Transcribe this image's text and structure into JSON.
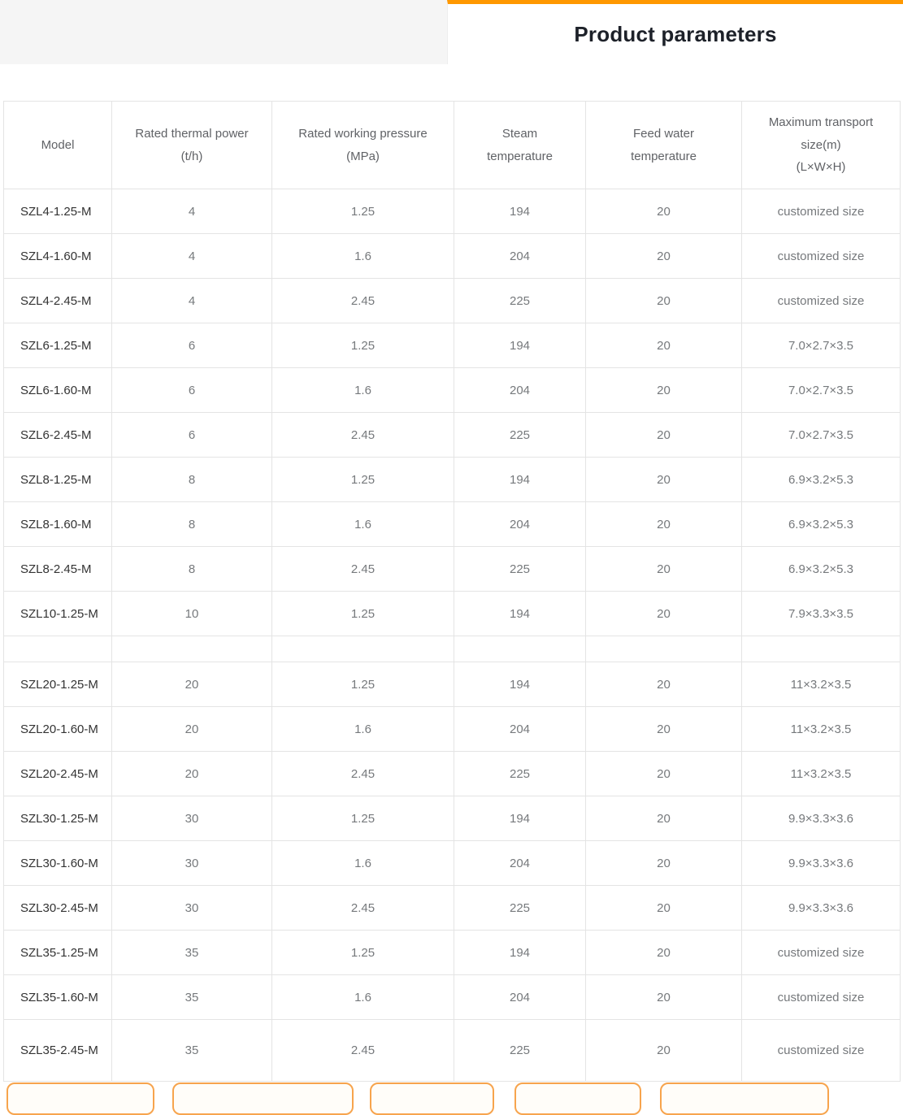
{
  "header": {
    "title": "Product parameters",
    "accent_color": "#ff9800",
    "title_color": "#1d2129",
    "strip_background": "#f5f5f5"
  },
  "table": {
    "columns": [
      "Model",
      "Rated thermal power\n(t/h)",
      "Rated working pressure\n(MPa)",
      "Steam\ntemperature",
      "Feed water\ntemperature",
      "Maximum transport\nsize(m)\n(L×W×H)"
    ],
    "rows": [
      [
        "SZL4-1.25-M",
        "4",
        "1.25",
        "194",
        "20",
        "customized size"
      ],
      [
        "SZL4-1.60-M",
        "4",
        "1.6",
        "204",
        "20",
        "customized size"
      ],
      [
        "SZL4-2.45-M",
        "4",
        "2.45",
        "225",
        "20",
        "customized size"
      ],
      [
        "SZL6-1.25-M",
        "6",
        "1.25",
        "194",
        "20",
        "7.0×2.7×3.5"
      ],
      [
        "SZL6-1.60-M",
        "6",
        "1.6",
        "204",
        "20",
        "7.0×2.7×3.5"
      ],
      [
        "SZL6-2.45-M",
        "6",
        "2.45",
        "225",
        "20",
        "7.0×2.7×3.5"
      ],
      [
        "SZL8-1.25-M",
        "8",
        "1.25",
        "194",
        "20",
        "6.9×3.2×5.3"
      ],
      [
        "SZL8-1.60-M",
        "8",
        "1.6",
        "204",
        "20",
        "6.9×3.2×5.3"
      ],
      [
        "SZL8-2.45-M",
        "8",
        "2.45",
        "225",
        "20",
        "6.9×3.2×5.3"
      ],
      [
        "SZL10-1.25-M",
        "10",
        "1.25",
        "194",
        "20",
        "7.9×3.3×3.5"
      ],
      [
        "",
        "",
        "",
        "",
        "",
        ""
      ],
      [
        "SZL20-1.25-M",
        "20",
        "1.25",
        "194",
        "20",
        "11×3.2×3.5"
      ],
      [
        "SZL20-1.60-M",
        "20",
        "1.6",
        "204",
        "20",
        "11×3.2×3.5"
      ],
      [
        "SZL20-2.45-M",
        "20",
        "2.45",
        "225",
        "20",
        "11×3.2×3.5"
      ],
      [
        "SZL30-1.25-M",
        "30",
        "1.25",
        "194",
        "20",
        "9.9×3.3×3.6"
      ],
      [
        "SZL30-1.60-M",
        "30",
        "1.6",
        "204",
        "20",
        "9.9×3.3×3.6"
      ],
      [
        "SZL30-2.45-M",
        "30",
        "2.45",
        "225",
        "20",
        "9.9×3.3×3.6"
      ],
      [
        "SZL35-1.25-M",
        "35",
        "1.25",
        "194",
        "20",
        "customized size"
      ],
      [
        "SZL35-1.60-M",
        "35",
        "1.6",
        "204",
        "20",
        "customized size"
      ],
      [
        "SZL35-2.45-M",
        "35",
        "2.45",
        "225",
        "20",
        "customized size"
      ]
    ]
  },
  "footer": {
    "button_border_color": "#f7a44d"
  }
}
